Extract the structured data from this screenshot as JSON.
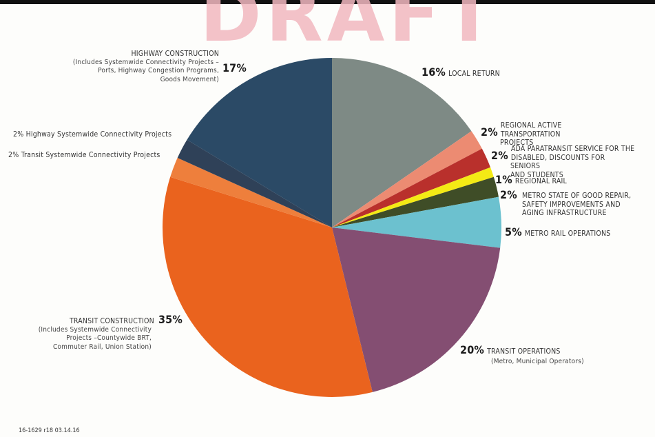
{
  "watermark": "DRAFT",
  "footer": "16-1629  r18  03.14.16",
  "chart_data": {
    "type": "pie",
    "slices": [
      {
        "pct": "16%",
        "value": 16,
        "label": "LOCAL RETURN",
        "color": "#7e8a85"
      },
      {
        "pct": "2%",
        "value": 2,
        "label": "REGIONAL ACTIVE\nTRANSPORTATION PROJECTS",
        "color": "#ec8b72"
      },
      {
        "pct": "2%",
        "value": 2,
        "label": "ADA PARATRANSIT SERVICE FOR THE\nDISABLED, DISCOUNTS FOR SENIORS\nAND STUDENTS",
        "color": "#b9302c"
      },
      {
        "pct": "1%",
        "value": 1,
        "label": "REGIONAL RAIL",
        "color": "#f4ea15"
      },
      {
        "pct": "2%",
        "value": 2,
        "label": "METRO STATE OF GOOD REPAIR,\nSAFETY IMPROVEMENTS AND\nAGING INFRASTRUCTURE",
        "color": "#3f4d27"
      },
      {
        "pct": "5%",
        "value": 5,
        "label": "METRO RAIL OPERATIONS",
        "color": "#6cc1cf"
      },
      {
        "pct": "20%",
        "value": 20,
        "label": "TRANSIT OPERATIONS",
        "sublabel": "(Metro, Municipal Operators)",
        "color": "#844e72"
      },
      {
        "pct": "35%",
        "value": 35,
        "label": "TRANSIT CONSTRUCTION",
        "sublabel": "(Includes Systemwide Connectivity\nProjects –Countywide BRT,\nCommuter Rail, Union Station)",
        "color": "#ea631e"
      },
      {
        "pct": "2%",
        "value": 2,
        "label": "Transit Systemwide Connectivity Projects",
        "color": "#ee7f3c"
      },
      {
        "pct": "2%",
        "value": 2,
        "label": "Highway Systemwide Connectivity Projects",
        "color": "#2f4158"
      },
      {
        "pct": "17%",
        "value": 17,
        "label": "HIGHWAY CONSTRUCTION",
        "sublabel": "(Includes Systemwide Connectivity Projects –\nPorts, Highway Congestion Programs,\nGoods Movement)",
        "color": "#2b4a66"
      }
    ]
  }
}
